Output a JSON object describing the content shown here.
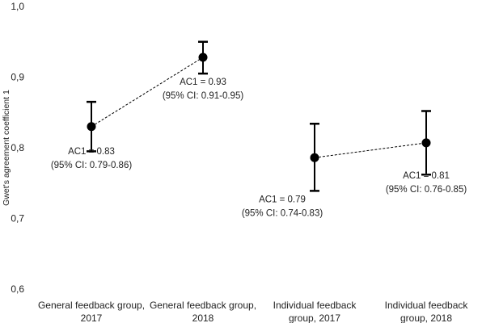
{
  "chart_data": {
    "type": "scatter",
    "ylabel": "Gwet's agreement coefficient 1",
    "ylim": [
      0.6,
      1.0
    ],
    "yticks": [
      "0,6",
      "0,7",
      "0,8",
      "0,9",
      "1,0"
    ],
    "categories": [
      [
        "General feedback group,",
        "2017"
      ],
      [
        "General feedback group,",
        "2018"
      ],
      [
        "Individual feedback",
        "group, 2017"
      ],
      [
        "Individual feedback",
        "group, 2018"
      ]
    ],
    "points": [
      {
        "value": 0.83,
        "lower": 0.795,
        "upper": 0.865
      },
      {
        "value": 0.928,
        "lower": 0.905,
        "upper": 0.95
      },
      {
        "value": 0.786,
        "lower": 0.739,
        "upper": 0.834
      },
      {
        "value": 0.807,
        "lower": 0.762,
        "upper": 0.852
      }
    ],
    "connections": [
      [
        0,
        1
      ],
      [
        2,
        3
      ]
    ],
    "annotations": [
      {
        "line1": "AC1 = 0.83",
        "line2": "(95% CI: 0.79-0.86)"
      },
      {
        "line1": "AC1 = 0.93",
        "line2": "(95% CI: 0.91-0.95)"
      },
      {
        "line1": "AC1 = 0.79",
        "line2": "(95% CI: 0.74-0.83)"
      },
      {
        "line1": "AC1 = 0.81",
        "line2": "(95% CI: 0.76-0.85)"
      }
    ],
    "grid": false
  }
}
